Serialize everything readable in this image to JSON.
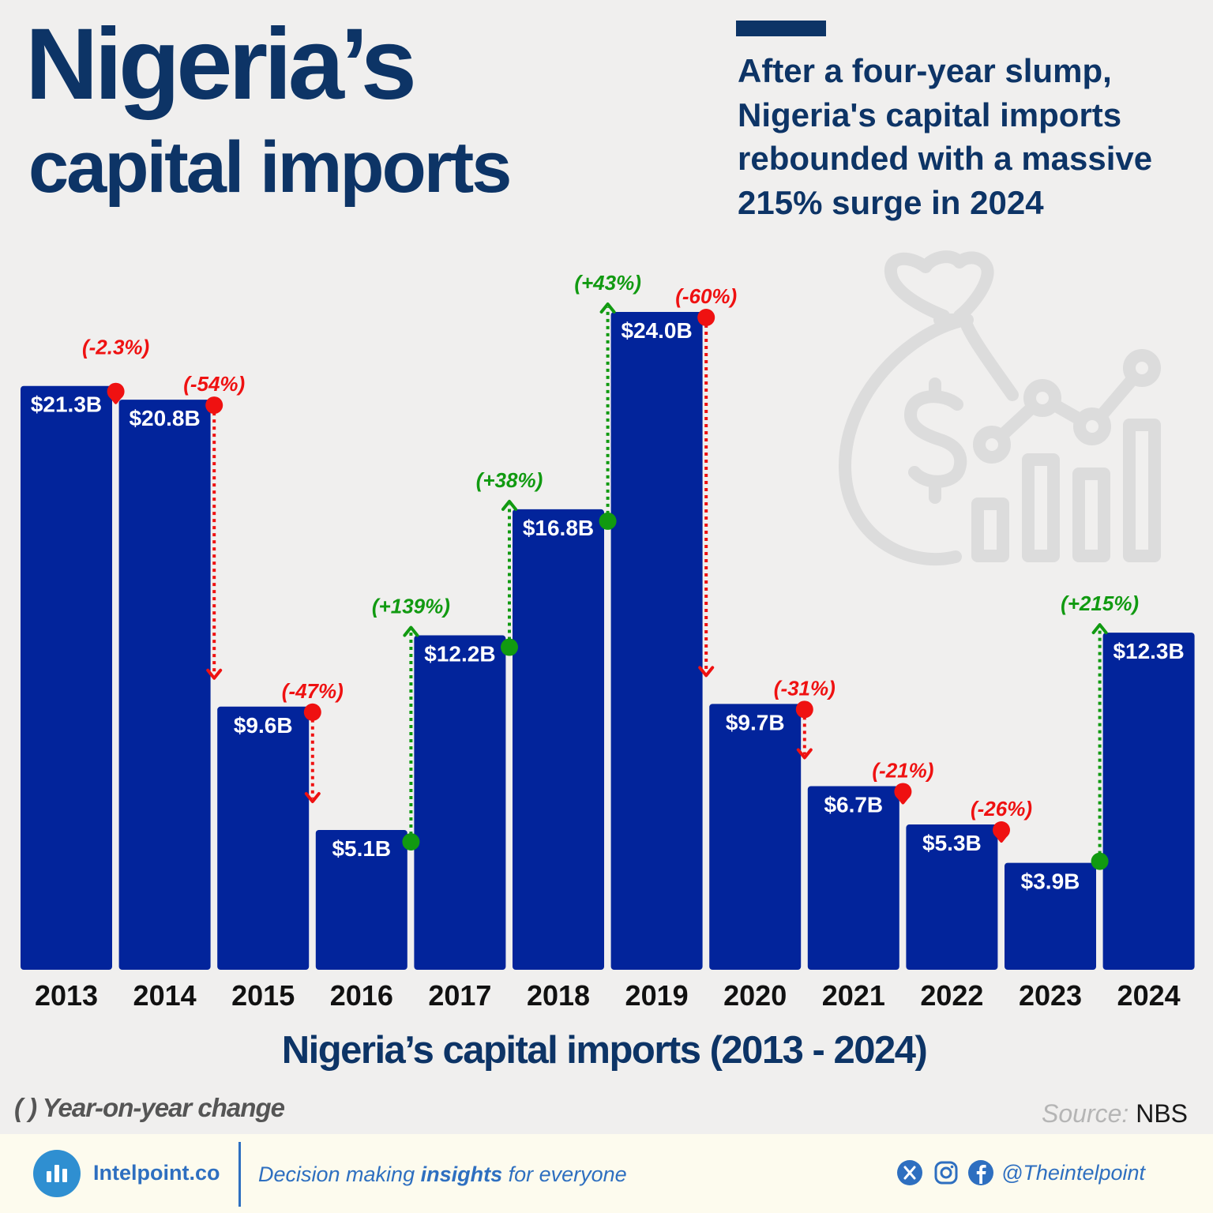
{
  "header": {
    "title_line1": "Nigeria’s",
    "title_line2": "capital imports",
    "subtitle": "After a four-year slump, Nigeria's capital imports rebounded with a massive 215% surge in 2024"
  },
  "chart_data": {
    "type": "bar",
    "title": "Nigeria’s capital imports (2013 - 2024)",
    "categories": [
      "2013",
      "2014",
      "2015",
      "2016",
      "2017",
      "2018",
      "2019",
      "2020",
      "2021",
      "2022",
      "2023",
      "2024"
    ],
    "values": [
      21.3,
      20.8,
      9.6,
      5.1,
      12.2,
      16.8,
      24.0,
      9.7,
      6.7,
      5.3,
      3.9,
      12.3
    ],
    "value_labels": [
      "$21.3B",
      "$20.8B",
      "$9.6B",
      "$5.1B",
      "$12.2B",
      "$16.8B",
      "$24.0B",
      "$9.7B",
      "$6.7B",
      "$5.3B",
      "$3.9B",
      "$12.3B"
    ],
    "yoy_change_labels": [
      null,
      "(-2.3%)",
      "(-54%)",
      "(-47%)",
      "(+139%)",
      "(+38%)",
      "(+43%)",
      "(-60%)",
      "(-31%)",
      "(-21%)",
      "(-26%)",
      "(+215%)"
    ],
    "unit": "$B",
    "ylim": [
      0,
      24
    ],
    "grid": false,
    "colors": {
      "bar": "#02249b",
      "decrease": "#ef1111",
      "increase": "#119a11"
    }
  },
  "notes": {
    "legend": "( ) Year-on-year change",
    "source_label": "Source:",
    "source_value": "NBS"
  },
  "background_icon": "money-bag-growth-chart-icon",
  "footer": {
    "brand": "Intelpoint.co",
    "tagline_before": "Decision making ",
    "tagline_bold": "insights",
    "tagline_after": " for everyone",
    "social_icons": [
      "x-icon",
      "instagram-icon",
      "facebook-icon"
    ],
    "handle": "@Theintelpoint"
  }
}
